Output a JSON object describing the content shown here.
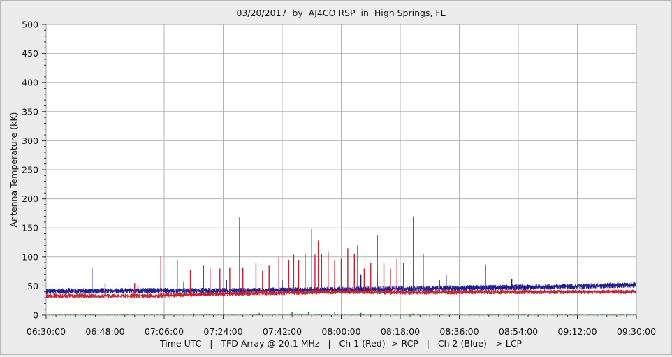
{
  "chart_data": {
    "type": "line",
    "title": "03/20/2017  by  AJ4CO RSP  in  High Springs, FL",
    "ylabel": "Antenna Temperature (kK)",
    "xlabel": "Time UTC   |   TFD Array @ 20.1 MHz   |   Ch 1 (Red) -> RCP   |   Ch 2 (Blue)  -> LCP",
    "x_ticks": [
      "06:30:00",
      "06:48:00",
      "07:06:00",
      "07:24:00",
      "07:42:00",
      "08:00:00",
      "08:18:00",
      "08:36:00",
      "08:54:00",
      "09:12:00",
      "09:30:00"
    ],
    "y_ticks": [
      "0",
      "50",
      "100",
      "150",
      "200",
      "250",
      "300",
      "350",
      "400",
      "450",
      "500"
    ],
    "xlim_minutes_utc": [
      390,
      570
    ],
    "ylim": [
      0,
      500
    ],
    "grid": true,
    "legend": "none",
    "series": [
      {
        "color": "#1c1c8c",
        "baseline": [
          [
            390,
            41
          ],
          [
            420,
            42
          ],
          [
            450,
            42
          ],
          [
            480,
            44
          ],
          [
            510,
            46
          ],
          [
            540,
            48
          ],
          [
            570,
            52
          ]
        ],
        "noise": 5,
        "spikes": [
          [
            397,
            47
          ],
          [
            404,
            81
          ],
          [
            418,
            50
          ],
          [
            432,
            58
          ],
          [
            445,
            60
          ],
          [
            462,
            60
          ],
          [
            478,
            60
          ],
          [
            486,
            70
          ],
          [
            491,
            70
          ],
          [
            502,
            70
          ],
          [
            512,
            69
          ],
          [
            532,
            62
          ]
        ]
      },
      {
        "color": "#c42030",
        "baseline": [
          [
            390,
            33
          ],
          [
            420,
            33
          ],
          [
            440,
            36
          ],
          [
            460,
            38
          ],
          [
            480,
            40
          ],
          [
            500,
            39
          ],
          [
            540,
            40
          ],
          [
            570,
            40
          ]
        ],
        "noise": 4,
        "spikes": [
          [
            408,
            55
          ],
          [
            417,
            55
          ],
          [
            425,
            101
          ],
          [
            430,
            95
          ],
          [
            434,
            78
          ],
          [
            438,
            85
          ],
          [
            440,
            80
          ],
          [
            443,
            80
          ],
          [
            446,
            82
          ],
          [
            449,
            168
          ],
          [
            450,
            82
          ],
          [
            454,
            90
          ],
          [
            456,
            76
          ],
          [
            458,
            85
          ],
          [
            461,
            100
          ],
          [
            464,
            95
          ],
          [
            465.5,
            104
          ],
          [
            467,
            95
          ],
          [
            469,
            105
          ],
          [
            471,
            148
          ],
          [
            472,
            104
          ],
          [
            473,
            128
          ],
          [
            474,
            105
          ],
          [
            476,
            110
          ],
          [
            478,
            95
          ],
          [
            480,
            97
          ],
          [
            482,
            115
          ],
          [
            484,
            105
          ],
          [
            485,
            120
          ],
          [
            487,
            80
          ],
          [
            489,
            90
          ],
          [
            491,
            137
          ],
          [
            493,
            90
          ],
          [
            495,
            80
          ],
          [
            497,
            97
          ],
          [
            499,
            90
          ],
          [
            502,
            170
          ],
          [
            505,
            105
          ],
          [
            510,
            60
          ],
          [
            524,
            87
          ],
          [
            533,
            50
          ]
        ]
      },
      {
        "color": "#2a7a2a",
        "baseline": [
          [
            390,
            0
          ],
          [
            570,
            0
          ]
        ],
        "noise": 1,
        "spikes": [
          [
            435,
            3
          ],
          [
            455,
            4
          ],
          [
            465,
            5
          ],
          [
            470,
            6
          ],
          [
            478,
            5
          ],
          [
            486,
            4
          ],
          [
            502,
            3
          ]
        ]
      }
    ]
  }
}
